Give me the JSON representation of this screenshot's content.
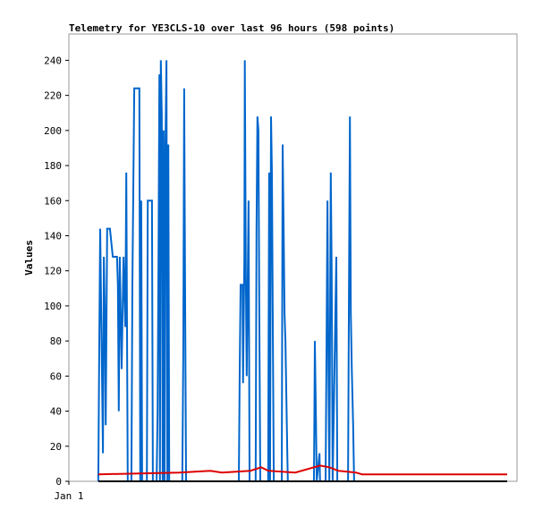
{
  "chart_data": {
    "type": "line",
    "title": "Telemetry for YE3CLS-10 over last 96 hours (598 points)",
    "y_label": "Values",
    "xlim": [
      0,
      96
    ],
    "xticks": [
      {
        "value": 0,
        "label": "Jan 1"
      }
    ],
    "ylim": [
      0,
      255
    ],
    "yticks": [
      0,
      20,
      40,
      60,
      80,
      100,
      120,
      140,
      160,
      180,
      200,
      220,
      240
    ],
    "series": [
      {
        "color": "#0066cc",
        "x": [
          6.3,
          6.5,
          6.7,
          7.3,
          7.5,
          7.7,
          7.9,
          8.2,
          8.8,
          9.4,
          10.3,
          10.5,
          10.7,
          10.9,
          11.3,
          11.7,
          12.1,
          12.3,
          12.6,
          13.4,
          13.6,
          14.0,
          15.1,
          15.3,
          15.5,
          15.7,
          16.7,
          16.9,
          17.8,
          18.0,
          18.8,
          19.0,
          19.2,
          19.4,
          19.5,
          19.7,
          19.9,
          20.1,
          20.3,
          20.5,
          20.7,
          20.9,
          21.1,
          21.3,
          21.5,
          24.3,
          24.5,
          24.7,
          24.9,
          25.1,
          36.4,
          36.6,
          36.8,
          37.2,
          37.3,
          37.6,
          37.7,
          37.9,
          38.1,
          38.5,
          38.7,
          40.0,
          40.2,
          40.4,
          40.6,
          40.8,
          41.0,
          42.7,
          42.9,
          43.1,
          43.3,
          43.5,
          43.7,
          43.9,
          45.6,
          45.8,
          46.0,
          46.2,
          46.4,
          46.8,
          46.9,
          52.5,
          52.7,
          52.9,
          53.1,
          53.7,
          53.8,
          55.0,
          55.2,
          55.4,
          55.6,
          55.8,
          56.1,
          56.3,
          56.5,
          57.3,
          57.5,
          59.8,
          60.0,
          60.2,
          60.4,
          60.6,
          60.9,
          61.1,
          93.9
        ],
        "values": [
          0,
          72,
          144,
          16,
          128,
          96,
          32,
          144,
          144,
          128,
          128,
          112,
          40,
          128,
          64,
          128,
          88,
          176,
          0,
          0,
          112,
          224,
          224,
          0,
          160,
          0,
          0,
          160,
          160,
          0,
          0,
          40,
          128,
          232,
          0,
          240,
          208,
          0,
          200,
          0,
          192,
          240,
          0,
          192,
          0,
          0,
          72,
          224,
          112,
          0,
          0,
          64,
          112,
          112,
          56,
          128,
          240,
          120,
          60,
          160,
          0,
          0,
          144,
          208,
          200,
          96,
          0,
          0,
          176,
          0,
          208,
          176,
          80,
          0,
          0,
          192,
          144,
          96,
          80,
          16,
          0,
          0,
          80,
          40,
          0,
          16,
          0,
          0,
          80,
          160,
          64,
          0,
          176,
          120,
          0,
          128,
          0,
          0,
          104,
          208,
          96,
          64,
          32,
          0,
          0
        ]
      },
      {
        "color": "#dd0000",
        "x": [
          6.3,
          23.6,
          30.3,
          32.8,
          38.9,
          41.2,
          42.7,
          48.5,
          53.8,
          55.8,
          57.7,
          61.5,
          62.8,
          93.9
        ],
        "values": [
          4,
          5,
          6,
          5,
          6,
          8,
          6,
          5,
          9,
          8,
          6,
          5,
          4,
          4
        ]
      },
      {
        "color": "#000000",
        "x": [
          6.3,
          93.9
        ],
        "values": [
          0,
          0
        ]
      }
    ]
  }
}
